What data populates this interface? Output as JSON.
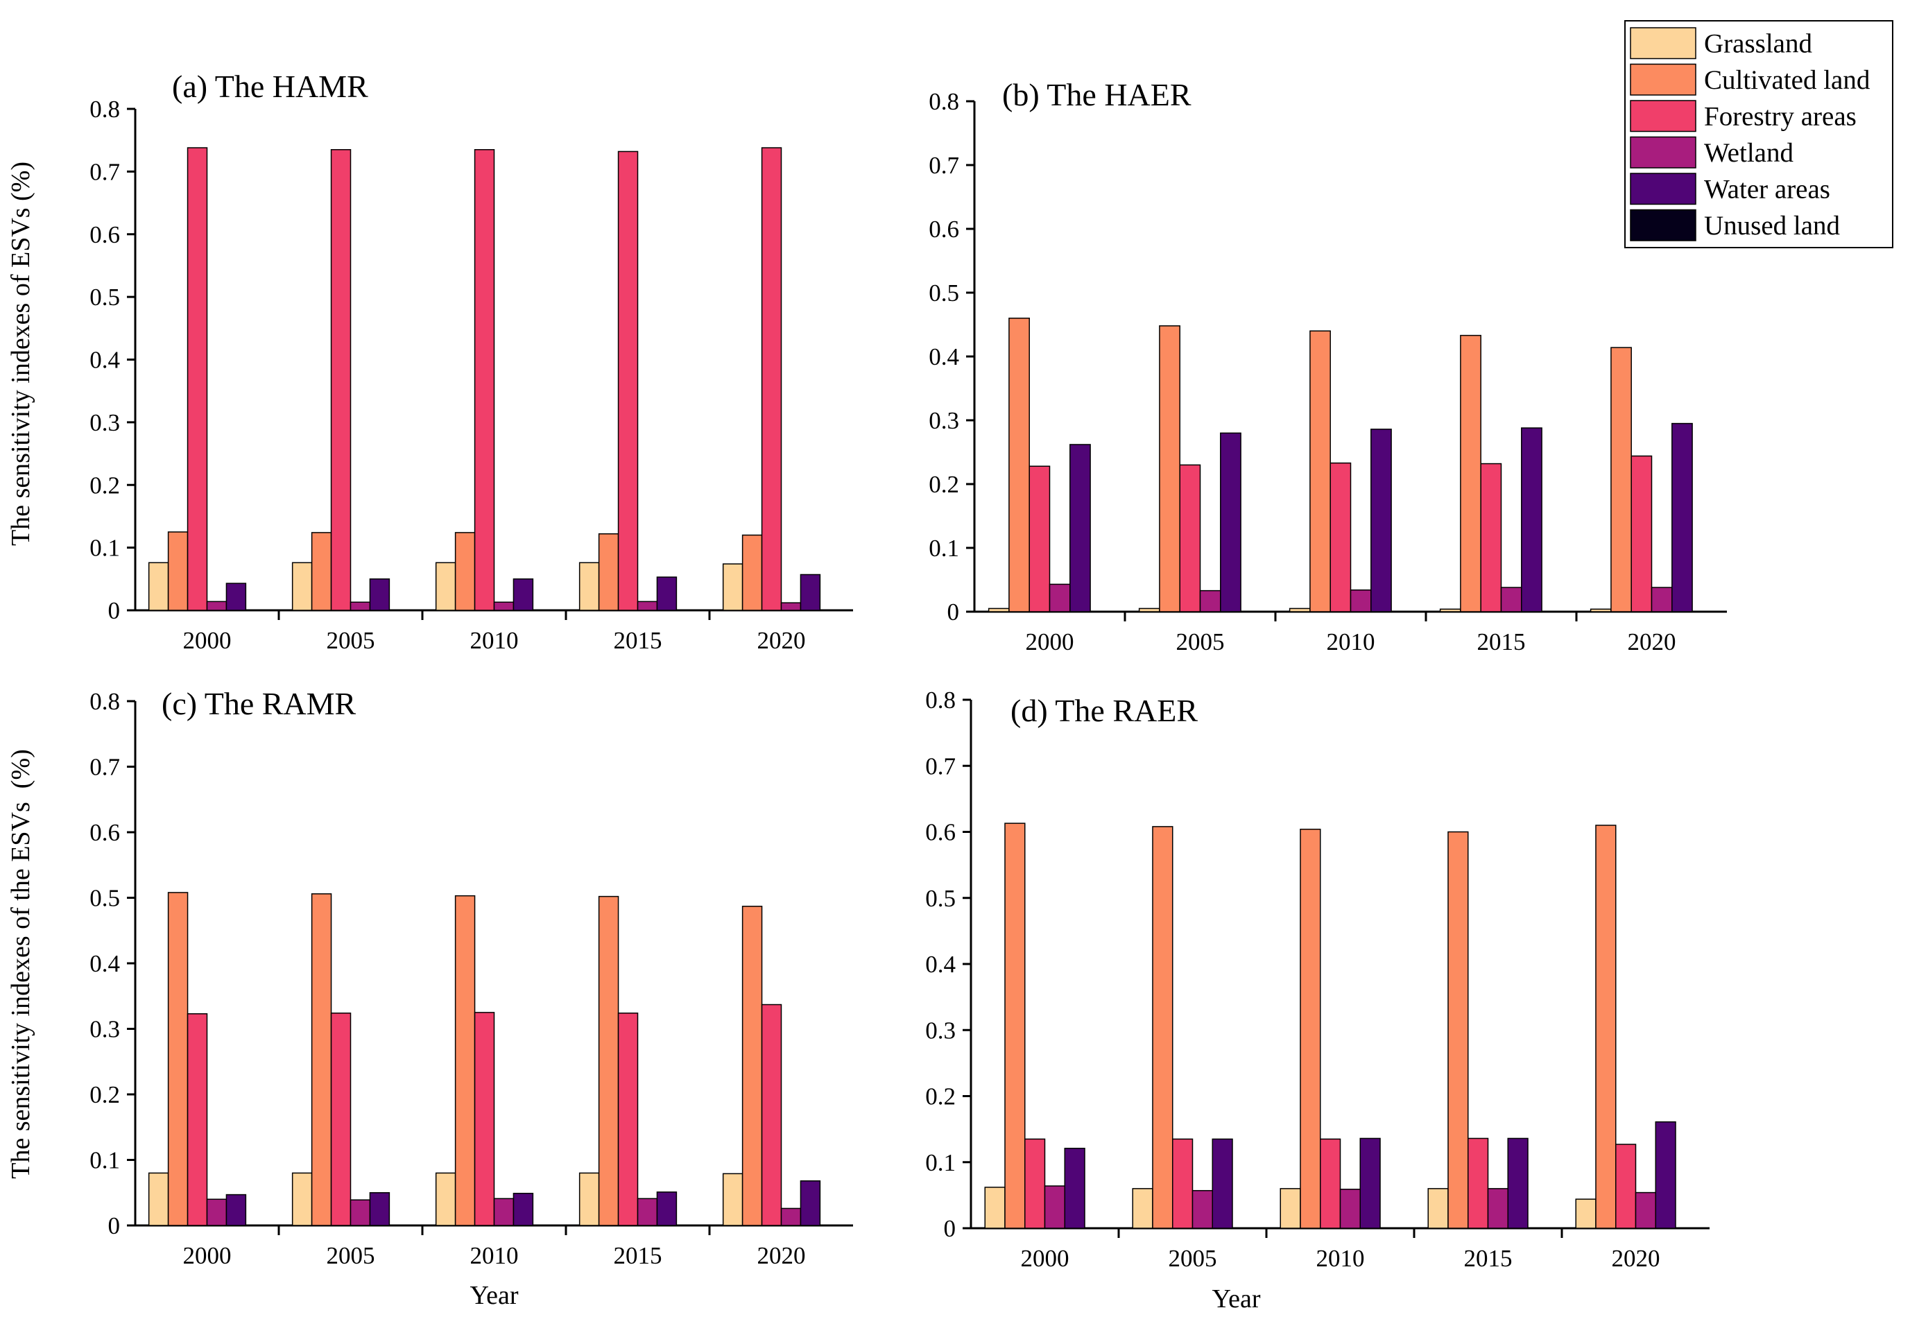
{
  "chart_data": [
    {
      "type": "bar",
      "title": "(a) The HAMR",
      "xlabel": "",
      "ylabel": "The sensitivity indexes of ESVs (%)",
      "ylim": [
        0,
        0.8
      ],
      "yticks": [
        "0",
        "0.1",
        "0.2",
        "0.3",
        "0.4",
        "0.5",
        "0.6",
        "0.7",
        "0.8"
      ],
      "categories": [
        "2000",
        "2005",
        "2010",
        "2015",
        "2020"
      ],
      "series": [
        {
          "name": "Grassland",
          "values": [
            0.076,
            0.076,
            0.076,
            0.076,
            0.074
          ]
        },
        {
          "name": "Cultivated land",
          "values": [
            0.125,
            0.124,
            0.124,
            0.122,
            0.12
          ]
        },
        {
          "name": "Forestry areas",
          "values": [
            0.738,
            0.735,
            0.735,
            0.732,
            0.738
          ]
        },
        {
          "name": "Wetland",
          "values": [
            0.014,
            0.013,
            0.013,
            0.014,
            0.012
          ]
        },
        {
          "name": "Water areas",
          "values": [
            0.043,
            0.05,
            0.05,
            0.053,
            0.057
          ]
        },
        {
          "name": "Unused land",
          "values": [
            0,
            0,
            0,
            0,
            0
          ]
        }
      ]
    },
    {
      "type": "bar",
      "title": "(b) The HAER",
      "xlabel": "",
      "ylabel": "",
      "ylim": [
        0,
        0.8
      ],
      "yticks": [
        "0",
        "0.1",
        "0.2",
        "0.3",
        "0.4",
        "0.5",
        "0.6",
        "0.7",
        "0.8"
      ],
      "categories": [
        "2000",
        "2005",
        "2010",
        "2015",
        "2020"
      ],
      "series": [
        {
          "name": "Grassland",
          "values": [
            0.005,
            0.005,
            0.005,
            0.004,
            0.004
          ]
        },
        {
          "name": "Cultivated land",
          "values": [
            0.46,
            0.448,
            0.44,
            0.433,
            0.414
          ]
        },
        {
          "name": "Forestry areas",
          "values": [
            0.228,
            0.23,
            0.233,
            0.232,
            0.244
          ]
        },
        {
          "name": "Wetland",
          "values": [
            0.043,
            0.033,
            0.034,
            0.038,
            0.038
          ]
        },
        {
          "name": "Water areas",
          "values": [
            0.262,
            0.28,
            0.286,
            0.288,
            0.295
          ]
        },
        {
          "name": "Unused land",
          "values": [
            0,
            0,
            0,
            0,
            0
          ]
        }
      ]
    },
    {
      "type": "bar",
      "title": "(c) The RAMR",
      "xlabel": "Year",
      "ylabel": "The sensitivity indexes of the ESVs  (%)",
      "ylim": [
        0,
        0.8
      ],
      "yticks": [
        "0",
        "0.1",
        "0.2",
        "0.3",
        "0.4",
        "0.5",
        "0.6",
        "0.7",
        "0.8"
      ],
      "categories": [
        "2000",
        "2005",
        "2010",
        "2015",
        "2020"
      ],
      "series": [
        {
          "name": "Grassland",
          "values": [
            0.08,
            0.08,
            0.08,
            0.08,
            0.079
          ]
        },
        {
          "name": "Cultivated land",
          "values": [
            0.508,
            0.506,
            0.503,
            0.502,
            0.487
          ]
        },
        {
          "name": "Forestry areas",
          "values": [
            0.323,
            0.324,
            0.325,
            0.324,
            0.337
          ]
        },
        {
          "name": "Wetland",
          "values": [
            0.04,
            0.039,
            0.041,
            0.041,
            0.026
          ]
        },
        {
          "name": "Water areas",
          "values": [
            0.047,
            0.05,
            0.049,
            0.051,
            0.068
          ]
        },
        {
          "name": "Unused land",
          "values": [
            0,
            0,
            0,
            0,
            0
          ]
        }
      ]
    },
    {
      "type": "bar",
      "title": "(d) The RAER",
      "xlabel": "Year",
      "ylabel": "",
      "ylim": [
        0,
        0.8
      ],
      "yticks": [
        "0",
        "0.1",
        "0.2",
        "0.3",
        "0.4",
        "0.5",
        "0.6",
        "0.7",
        "0.8"
      ],
      "categories": [
        "2000",
        "2005",
        "2010",
        "2015",
        "2020"
      ],
      "series": [
        {
          "name": "Grassland",
          "values": [
            0.062,
            0.06,
            0.06,
            0.06,
            0.044
          ]
        },
        {
          "name": "Cultivated land",
          "values": [
            0.613,
            0.608,
            0.604,
            0.6,
            0.61
          ]
        },
        {
          "name": "Forestry areas",
          "values": [
            0.135,
            0.135,
            0.135,
            0.136,
            0.127
          ]
        },
        {
          "name": "Wetland",
          "values": [
            0.064,
            0.057,
            0.059,
            0.06,
            0.054
          ]
        },
        {
          "name": "Water areas",
          "values": [
            0.121,
            0.135,
            0.136,
            0.136,
            0.161
          ]
        },
        {
          "name": "Unused land",
          "values": [
            0,
            0,
            0,
            0,
            0
          ]
        }
      ]
    }
  ],
  "legend": {
    "placement": "top-right",
    "items": [
      {
        "name": "Grassland",
        "color": "#FDD59A"
      },
      {
        "name": "Cultivated land",
        "color": "#FC8B60"
      },
      {
        "name": "Forestry areas",
        "color": "#F03F6A"
      },
      {
        "name": "Wetland",
        "color": "#A81D7E"
      },
      {
        "name": "Water areas",
        "color": "#500576"
      },
      {
        "name": "Unused land",
        "color": "#05001A"
      }
    ]
  }
}
